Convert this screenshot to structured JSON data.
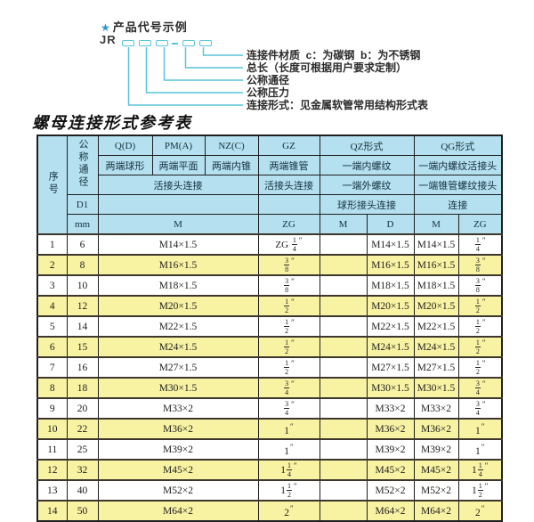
{
  "colors": {
    "header_bg": "#b5e0f0",
    "row_alt_bg": "#f8f2a3",
    "line": "#58c4dc",
    "star": "#2f95d2",
    "border": "#1f1f1f",
    "row_border": "#3d362c"
  },
  "diagram": {
    "star": "★",
    "heading": "产品代号示例",
    "prefix": "JR",
    "dash": "-",
    "labels": [
      "连接件材质  c：为碳钢  b：为不锈钢",
      "总长（长度可根据用户要求定制）",
      "公称通径",
      "公称压力",
      "连接形式：见金属软管常用结构形式表"
    ]
  },
  "table": {
    "title": "螺母连接形式参考表",
    "unit_mark": "″",
    "header": {
      "col_no": "序号",
      "col_dn": "公称通径",
      "col_q": "Q(D)",
      "col_pm": "PM(A)",
      "col_nz": "NZ(C)",
      "col_gz": "GZ",
      "col_qz": "QZ形式",
      "col_qg": "QG形式",
      "q_desc": "两端球形",
      "pm_desc": "两端平面",
      "nz_desc": "两端内锥",
      "gz_desc": "两端锥管",
      "qz_desc1": "一端内螺纹",
      "qg_desc1": "一端内螺纹活接头",
      "union_joint": "活接头连接",
      "gz_joint": "活接头连接",
      "qz_desc2": "一端外螺纹",
      "qg_desc2": "一端锥管螺纹接头",
      "d1": "D1",
      "qz_desc3": "球形接头连接",
      "qg_desc3": "连接",
      "mm": "mm",
      "m": "M",
      "zg": "ZG",
      "qz_m": "M",
      "qz_d": "D",
      "qg_m": "M",
      "qg_zg": "ZG"
    },
    "rows": [
      {
        "no": "1",
        "dn": "6",
        "m": "M14×1.5",
        "gz": {
          "pre": "ZG",
          "num": "1",
          "den": "4"
        },
        "qz_m": "",
        "qz_d": "M14×1.5",
        "qg_m": "M14×1.5",
        "qg_zg": {
          "num": "1",
          "den": "4"
        }
      },
      {
        "no": "2",
        "dn": "8",
        "m": "M16×1.5",
        "gz": {
          "num": "3",
          "den": "8"
        },
        "qz_m": "",
        "qz_d": "M16×1.5",
        "qg_m": "M16×1.5",
        "qg_zg": {
          "num": "3",
          "den": "8"
        }
      },
      {
        "no": "3",
        "dn": "10",
        "m": "M18×1.5",
        "gz": {
          "num": "3",
          "den": "8"
        },
        "qz_m": "",
        "qz_d": "M18×1.5",
        "qg_m": "M18×1.5",
        "qg_zg": {
          "num": "3",
          "den": "8"
        }
      },
      {
        "no": "4",
        "dn": "12",
        "m": "M20×1.5",
        "gz": {
          "num": "1",
          "den": "2"
        },
        "qz_m": "",
        "qz_d": "M20×1.5",
        "qg_m": "M20×1.5",
        "qg_zg": {
          "num": "1",
          "den": "2"
        }
      },
      {
        "no": "5",
        "dn": "14",
        "m": "M22×1.5",
        "gz": {
          "num": "1",
          "den": "2"
        },
        "qz_m": "",
        "qz_d": "M22×1.5",
        "qg_m": "M22×1.5",
        "qg_zg": {
          "num": "1",
          "den": "2"
        }
      },
      {
        "no": "6",
        "dn": "15",
        "m": "M24×1.5",
        "gz": {
          "num": "1",
          "den": "2"
        },
        "qz_m": "",
        "qz_d": "M24×1.5",
        "qg_m": "M24×1.5",
        "qg_zg": {
          "num": "1",
          "den": "2"
        }
      },
      {
        "no": "7",
        "dn": "16",
        "m": "M27×1.5",
        "gz": {
          "num": "1",
          "den": "2"
        },
        "qz_m": "",
        "qz_d": "M27×1.5",
        "qg_m": "M27×1.5",
        "qg_zg": {
          "num": "1",
          "den": "2"
        }
      },
      {
        "no": "8",
        "dn": "18",
        "m": "M30×1.5",
        "gz": {
          "num": "3",
          "den": "4"
        },
        "qz_m": "",
        "qz_d": "M30×1.5",
        "qg_m": "M30×1.5",
        "qg_zg": {
          "num": "3",
          "den": "4"
        }
      },
      {
        "no": "9",
        "dn": "20",
        "m": "M33×2",
        "gz": {
          "num": "3",
          "den": "4"
        },
        "qz_m": "",
        "qz_d": "M33×2",
        "qg_m": "M33×2",
        "qg_zg": {
          "num": "3",
          "den": "4"
        }
      },
      {
        "no": "10",
        "dn": "22",
        "m": "M36×2",
        "gz": {
          "whole": "1"
        },
        "qz_m": "",
        "qz_d": "M36×2",
        "qg_m": "M36×2",
        "qg_zg": {
          "whole": "1"
        }
      },
      {
        "no": "11",
        "dn": "25",
        "m": "M39×2",
        "gz": {
          "whole": "1"
        },
        "qz_m": "",
        "qz_d": "M39×2",
        "qg_m": "M39×2",
        "qg_zg": {
          "whole": "1"
        }
      },
      {
        "no": "12",
        "dn": "32",
        "m": "M45×2",
        "gz": {
          "whole": "1",
          "num": "1",
          "den": "4"
        },
        "qz_m": "",
        "qz_d": "M45×2",
        "qg_m": "M45×2",
        "qg_zg": {
          "whole": "1",
          "num": "1",
          "den": "4"
        }
      },
      {
        "no": "13",
        "dn": "40",
        "m": "M52×2",
        "gz": {
          "whole": "1",
          "num": "1",
          "den": "2"
        },
        "qz_m": "",
        "qz_d": "M52×2",
        "qg_m": "M52×2",
        "qg_zg": {
          "whole": "1",
          "num": "1",
          "den": "2"
        }
      },
      {
        "no": "14",
        "dn": "50",
        "m": "M64×2",
        "gz": {
          "whole": "2"
        },
        "qz_m": "",
        "qz_d": "M64×2",
        "qg_m": "M64×2",
        "qg_zg": {
          "whole": "2"
        }
      }
    ]
  }
}
